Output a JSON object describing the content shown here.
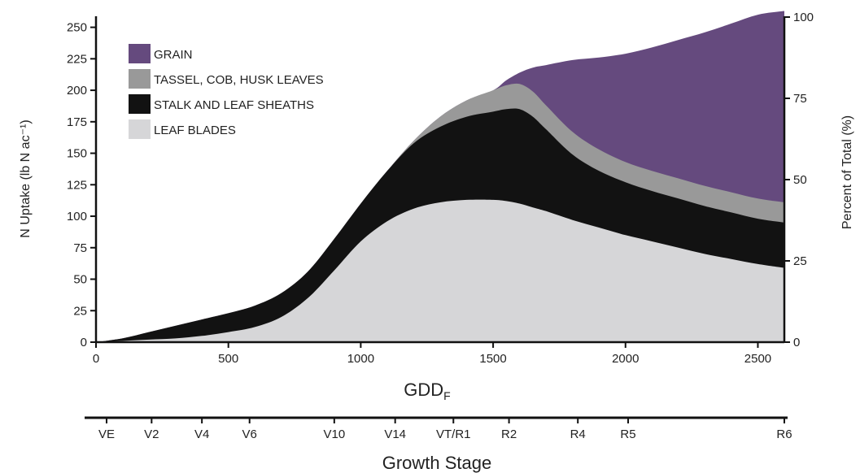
{
  "chart_data": {
    "type": "area",
    "stacked": true,
    "xlabel_main": "GDD",
    "xlabel_sub": "F",
    "ylabel": "N Uptake (lb N ac⁻¹)",
    "y2label": "Percent of Total (%)",
    "xlim": [
      0,
      2600
    ],
    "ylim": [
      0,
      262
    ],
    "x_ticks": [
      0,
      500,
      1000,
      1500,
      2000,
      2500
    ],
    "y_ticks": [
      0,
      25,
      50,
      75,
      100,
      125,
      150,
      175,
      200,
      225,
      250
    ],
    "y2_ticks": [
      0,
      25,
      50,
      75,
      100
    ],
    "grid": false,
    "legend_position": "top-left",
    "growth_stage_axis": {
      "title": "Growth Stage",
      "stages": [
        {
          "label": "VE",
          "gdd": 40
        },
        {
          "label": "V2",
          "gdd": 210
        },
        {
          "label": "V4",
          "gdd": 400
        },
        {
          "label": "V6",
          "gdd": 580
        },
        {
          "label": "V10",
          "gdd": 900
        },
        {
          "label": "V14",
          "gdd": 1130
        },
        {
          "label": "VT/R1",
          "gdd": 1350
        },
        {
          "label": "R2",
          "gdd": 1560
        },
        {
          "label": "R4",
          "gdd": 1820
        },
        {
          "label": "R5",
          "gdd": 2010
        },
        {
          "label": "R6",
          "gdd": 2600
        }
      ]
    },
    "x": [
      0,
      100,
      200,
      300,
      400,
      500,
      600,
      700,
      800,
      900,
      1000,
      1100,
      1200,
      1300,
      1400,
      1500,
      1550,
      1600,
      1650,
      1700,
      1800,
      1900,
      2000,
      2100,
      2200,
      2300,
      2400,
      2500,
      2600
    ],
    "series": [
      {
        "name": "LEAF BLADES",
        "color": "#d6d6d8",
        "values": [
          0,
          1,
          2,
          3,
          5,
          8,
          12,
          20,
          35,
          57,
          80,
          96,
          106,
          111,
          113,
          113,
          112,
          110,
          107,
          104,
          97,
          91,
          85,
          80,
          75,
          70,
          66,
          62,
          59
        ]
      },
      {
        "name": "STALK AND LEAF SHEATHS",
        "color": "#121212",
        "values": [
          0,
          2,
          6,
          10,
          13,
          15,
          17,
          19,
          21,
          25,
          30,
          40,
          52,
          60,
          66,
          70,
          73,
          75,
          72,
          65,
          52,
          45,
          42,
          40,
          39,
          38,
          37,
          36,
          36
        ]
      },
      {
        "name": "TASSEL, COB, HUSK LEAVES",
        "color": "#999999",
        "values": [
          0,
          0,
          0,
          0,
          0,
          0,
          0,
          0,
          0,
          0,
          0,
          0,
          2,
          8,
          13,
          17,
          19,
          20,
          20,
          19,
          18,
          17,
          16,
          16,
          16,
          16,
          16,
          16,
          16
        ]
      },
      {
        "name": "GRAIN",
        "color": "#654a7e",
        "values": [
          0,
          0,
          0,
          0,
          0,
          0,
          0,
          0,
          0,
          0,
          0,
          0,
          0,
          0,
          0,
          0,
          4,
          9,
          19,
          32,
          57,
          73,
          86,
          98,
          110,
          122,
          134,
          146,
          152
        ]
      }
    ]
  }
}
